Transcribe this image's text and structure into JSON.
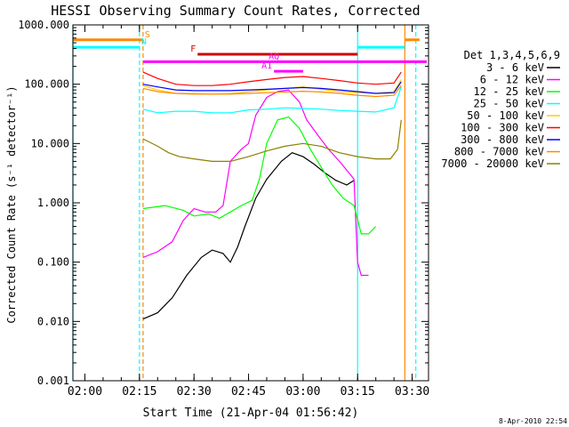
{
  "chart_data": {
    "type": "line",
    "title": "HESSI Observing Summary Count Rates, Corrected",
    "xlabel": "Start Time (21-Apr-04 01:56:42)",
    "ylabel": "Corrected Count Rate (s⁻¹ detector⁻¹)",
    "y_scale": "log",
    "ylim": [
      0.001,
      1000
    ],
    "xlim": [
      "01:56:42",
      "03:34:30"
    ],
    "x_ticks": [
      "02:00",
      "02:15",
      "02:30",
      "02:45",
      "03:00",
      "03:15",
      "03:30"
    ],
    "y_ticks": [
      "0.001",
      "0.010",
      "0.100",
      "1.000",
      "10.000",
      "100.000",
      "1000.000"
    ],
    "timestamp": "8-Apr-2010 22:54",
    "legend_title": "Det 1,3,4,5,6,9",
    "legend_position": "right",
    "series": [
      {
        "name": "3 - 6 keV",
        "color": "#000000",
        "points": [
          [
            "02:16",
            0.011
          ],
          [
            "02:20",
            0.014
          ],
          [
            "02:24",
            0.025
          ],
          [
            "02:28",
            0.06
          ],
          [
            "02:32",
            0.12
          ],
          [
            "02:35",
            0.16
          ],
          [
            "02:38",
            0.14
          ],
          [
            "02:40",
            0.1
          ],
          [
            "02:42",
            0.18
          ],
          [
            "02:44",
            0.4
          ],
          [
            "02:47",
            1.2
          ],
          [
            "02:50",
            2.5
          ],
          [
            "02:54",
            5.0
          ],
          [
            "02:57",
            7.0
          ],
          [
            "03:00",
            6.0
          ],
          [
            "03:03",
            4.5
          ],
          [
            "03:06",
            3.2
          ],
          [
            "03:09",
            2.4
          ],
          [
            "03:12",
            2.0
          ],
          [
            "03:14",
            2.4
          ]
        ]
      },
      {
        "name": "6 - 12 keV",
        "color": "#ff00ff",
        "points": [
          [
            "02:16",
            0.12
          ],
          [
            "02:20",
            0.15
          ],
          [
            "02:24",
            0.22
          ],
          [
            "02:27",
            0.5
          ],
          [
            "02:30",
            0.8
          ],
          [
            "02:33",
            0.7
          ],
          [
            "02:36",
            0.7
          ],
          [
            "02:38",
            0.9
          ],
          [
            "02:40",
            5.0
          ],
          [
            "02:43",
            8.0
          ],
          [
            "02:45",
            10
          ],
          [
            "02:47",
            30
          ],
          [
            "02:50",
            60
          ],
          [
            "02:53",
            75
          ],
          [
            "02:56",
            80
          ],
          [
            "02:59",
            50
          ],
          [
            "03:01",
            25
          ],
          [
            "03:04",
            14
          ],
          [
            "03:07",
            8
          ],
          [
            "03:10",
            5
          ],
          [
            "03:13",
            3
          ],
          [
            "03:14",
            2.5
          ],
          [
            "03:15",
            0.1
          ],
          [
            "03:16",
            0.06
          ],
          [
            "03:18",
            0.06
          ]
        ]
      },
      {
        "name": "12 - 25 keV",
        "color": "#00ff00",
        "points": [
          [
            "02:16",
            0.8
          ],
          [
            "02:22",
            0.9
          ],
          [
            "02:27",
            0.75
          ],
          [
            "02:30",
            0.6
          ],
          [
            "02:34",
            0.65
          ],
          [
            "02:37",
            0.55
          ],
          [
            "02:40",
            0.7
          ],
          [
            "02:43",
            0.9
          ],
          [
            "02:46",
            1.1
          ],
          [
            "02:48",
            2.5
          ],
          [
            "02:50",
            10
          ],
          [
            "02:53",
            25
          ],
          [
            "02:56",
            28
          ],
          [
            "02:59",
            18
          ],
          [
            "03:02",
            8
          ],
          [
            "03:05",
            4
          ],
          [
            "03:08",
            2.0
          ],
          [
            "03:11",
            1.2
          ],
          [
            "03:14",
            0.9
          ],
          [
            "03:16",
            0.3
          ],
          [
            "03:18",
            0.3
          ],
          [
            "03:20",
            0.4
          ]
        ]
      },
      {
        "name": "25 - 50 keV",
        "color": "#00ffff",
        "points": [
          [
            "02:16",
            38
          ],
          [
            "02:20",
            33
          ],
          [
            "02:25",
            35
          ],
          [
            "02:30",
            35
          ],
          [
            "02:35",
            33
          ],
          [
            "02:40",
            33
          ],
          [
            "02:45",
            37
          ],
          [
            "02:50",
            38
          ],
          [
            "02:55",
            40
          ],
          [
            "03:00",
            39
          ],
          [
            "03:05",
            38
          ],
          [
            "03:10",
            36
          ],
          [
            "03:15",
            35
          ],
          [
            "03:20",
            34
          ],
          [
            "03:25",
            40
          ],
          [
            "03:27",
            90
          ]
        ]
      },
      {
        "name": "50 - 100 keV",
        "color": "#ffcc00",
        "points": [
          [
            "02:16",
            95
          ],
          [
            "02:20",
            80
          ],
          [
            "02:25",
            70
          ],
          [
            "02:30",
            70
          ],
          [
            "02:35",
            68
          ],
          [
            "02:40",
            70
          ],
          [
            "02:45",
            75
          ],
          [
            "02:50",
            80
          ],
          [
            "02:55",
            85
          ],
          [
            "03:00",
            90
          ],
          [
            "03:05",
            82
          ],
          [
            "03:10",
            75
          ],
          [
            "03:15",
            72
          ],
          [
            "03:20",
            70
          ],
          [
            "03:25",
            75
          ],
          [
            "03:27",
            120
          ]
        ]
      },
      {
        "name": "100 - 300 keV",
        "color": "#ff0000",
        "points": [
          [
            "02:16",
            160
          ],
          [
            "02:20",
            125
          ],
          [
            "02:25",
            100
          ],
          [
            "02:30",
            95
          ],
          [
            "02:35",
            95
          ],
          [
            "02:40",
            100
          ],
          [
            "02:45",
            110
          ],
          [
            "02:50",
            120
          ],
          [
            "02:55",
            130
          ],
          [
            "03:00",
            135
          ],
          [
            "03:05",
            125
          ],
          [
            "03:10",
            115
          ],
          [
            "03:15",
            105
          ],
          [
            "03:20",
            100
          ],
          [
            "03:25",
            105
          ],
          [
            "03:27",
            160
          ]
        ]
      },
      {
        "name": "300 - 800 keV",
        "color": "#0000ff",
        "points": [
          [
            "02:16",
            100
          ],
          [
            "02:20",
            90
          ],
          [
            "02:25",
            80
          ],
          [
            "02:30",
            78
          ],
          [
            "02:35",
            78
          ],
          [
            "02:40",
            78
          ],
          [
            "02:45",
            80
          ],
          [
            "02:50",
            82
          ],
          [
            "02:55",
            85
          ],
          [
            "03:00",
            88
          ],
          [
            "03:05",
            85
          ],
          [
            "03:10",
            80
          ],
          [
            "03:15",
            75
          ],
          [
            "03:20",
            70
          ],
          [
            "03:25",
            72
          ],
          [
            "03:27",
            110
          ]
        ]
      },
      {
        "name": "800 - 7000 keV",
        "color": "#ff8800",
        "points": [
          [
            "02:16",
            85
          ],
          [
            "02:20",
            75
          ],
          [
            "02:25",
            70
          ],
          [
            "02:30",
            68
          ],
          [
            "02:35",
            68
          ],
          [
            "02:40",
            68
          ],
          [
            "02:45",
            70
          ],
          [
            "02:50",
            72
          ],
          [
            "02:55",
            74
          ],
          [
            "03:00",
            76
          ],
          [
            "03:05",
            74
          ],
          [
            "03:10",
            70
          ],
          [
            "03:15",
            65
          ],
          [
            "03:20",
            62
          ],
          [
            "03:25",
            65
          ],
          [
            "03:27",
            95
          ]
        ]
      },
      {
        "name": "7000 - 20000 keV",
        "color": "#8b8000",
        "points": [
          [
            "02:16",
            12
          ],
          [
            "02:20",
            9
          ],
          [
            "02:23",
            7
          ],
          [
            "02:26",
            6
          ],
          [
            "02:30",
            5.5
          ],
          [
            "02:35",
            5
          ],
          [
            "02:40",
            5
          ],
          [
            "02:45",
            6
          ],
          [
            "02:50",
            7.5
          ],
          [
            "02:55",
            9
          ],
          [
            "03:00",
            10
          ],
          [
            "03:05",
            9
          ],
          [
            "03:10",
            7
          ],
          [
            "03:15",
            6
          ],
          [
            "03:20",
            5.5
          ],
          [
            "03:24",
            5.5
          ],
          [
            "03:26",
            8
          ],
          [
            "03:27",
            25
          ]
        ]
      }
    ],
    "flag_bars": [
      {
        "label": "S",
        "color": "#ff8800",
        "value": 560,
        "segments": [
          [
            "01:56:42",
            "02:16"
          ],
          [
            "03:28",
            "03:32"
          ]
        ]
      },
      {
        "label": "N",
        "color": "#00ffff",
        "value": 420,
        "segments": [
          [
            "01:56:42",
            "02:15"
          ],
          [
            "03:15",
            "03:28"
          ]
        ]
      },
      {
        "label": "F",
        "color": "#cc0000",
        "value": 320,
        "segments": [
          [
            "02:31",
            "03:15"
          ]
        ]
      },
      {
        "label": "AQ",
        "color": "#ff00ff",
        "value": 240,
        "segments": [
          [
            "02:16",
            "03:34"
          ]
        ]
      },
      {
        "label": "A1",
        "color": "#ff00ff",
        "value": 165,
        "segments": [
          [
            "02:52",
            "03:00"
          ]
        ]
      }
    ],
    "vertical_lines": [
      {
        "time": "01:56:42",
        "color": "#00ffff",
        "style": "solid"
      },
      {
        "time": "02:15",
        "color": "#00ffff",
        "style": "dashed"
      },
      {
        "time": "02:16",
        "color": "#ff8800",
        "style": "dashed"
      },
      {
        "time": "03:15",
        "color": "#00ffff",
        "style": "solid"
      },
      {
        "time": "03:28",
        "color": "#ff8800",
        "style": "solid"
      },
      {
        "time": "03:31",
        "color": "#00ffff",
        "style": "dashed"
      }
    ]
  }
}
